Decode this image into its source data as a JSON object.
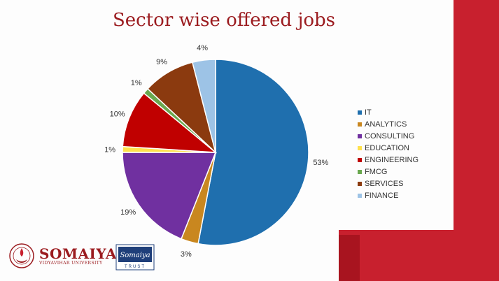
{
  "chart_data": {
    "type": "pie",
    "title": "Sector wise offered jobs",
    "categories": [
      "IT",
      "ANALYTICS",
      "CONSULTING",
      "EDUCATION",
      "ENGINEERING",
      "FMCG",
      "SERVICES",
      "FINANCE"
    ],
    "values": [
      53,
      3,
      19,
      1,
      10,
      1,
      9,
      4
    ],
    "data_labels": [
      "53%",
      "3%",
      "19%",
      "1%",
      "10%",
      "1%",
      "9%",
      "4%"
    ],
    "colors": [
      "#1f6fae",
      "#c9871f",
      "#7030a0",
      "#ffe14d",
      "#c00000",
      "#6aa84f",
      "#8b3a0f",
      "#9dc3e6"
    ],
    "legend_position": "right",
    "start_angle": "12 o'clock",
    "direction": "clockwise"
  },
  "branding": {
    "logo_name": "SOMAIYA",
    "logo_subtitle": "VIDYAVIHAR UNIVERSITY",
    "trust_logo_text": "Somaiya",
    "trust_logo_sub": "TRUST",
    "accent_color": "#c8202e"
  }
}
